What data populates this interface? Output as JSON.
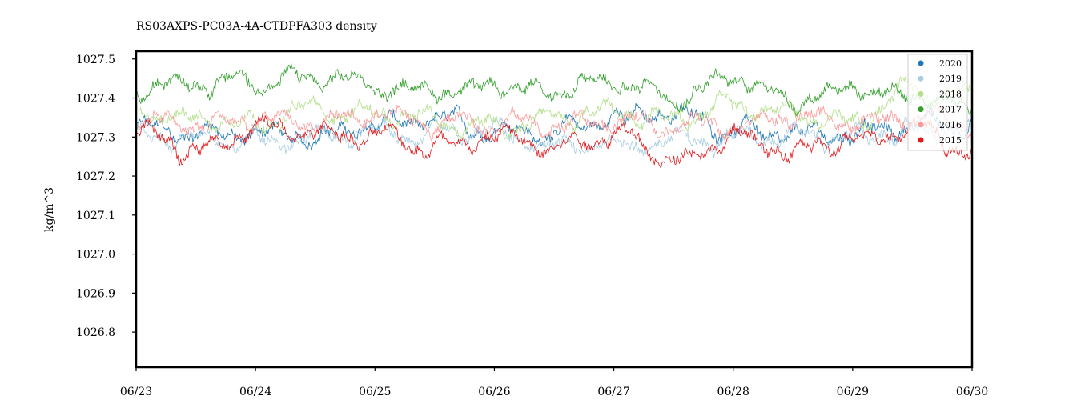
{
  "chart_data": {
    "type": "line",
    "title": "RS03AXPS-PC03A-4A-CTDPFA303 density",
    "xlabel": "",
    "ylabel": "kg/m^3",
    "x_ticks": [
      "06/23",
      "06/24",
      "06/25",
      "06/26",
      "06/27",
      "06/28",
      "06/29",
      "06/30"
    ],
    "y_ticks": [
      1026.8,
      1026.9,
      1027.0,
      1027.1,
      1027.2,
      1027.3,
      1027.4,
      1027.5
    ],
    "xlim": [
      "06/23",
      "06/30"
    ],
    "ylim": [
      1026.71,
      1027.52
    ],
    "grid": false,
    "legend_position": "top-right",
    "series": [
      {
        "name": "2020",
        "color": "#1f78b4",
        "x": [
          "06/23",
          "06/23 12:00",
          "06/24",
          "06/24 12:00",
          "06/25",
          "06/25 12:00",
          "06/26",
          "06/26 12:00",
          "06/27",
          "06/27 12:00",
          "06/28",
          "06/28 12:00",
          "06/29",
          "06/29 12:00",
          "06/30"
        ],
        "values": [
          1027.32,
          1027.31,
          1027.31,
          1027.3,
          1027.33,
          1027.34,
          1027.32,
          1027.31,
          1027.35,
          1027.36,
          1027.32,
          1027.3,
          1027.31,
          1027.33,
          1027.34
        ]
      },
      {
        "name": "2019",
        "color": "#a6cee3",
        "x": [
          "06/23",
          "06/23 12:00",
          "06/24",
          "06/24 12:00",
          "06/25",
          "06/25 12:00",
          "06/26",
          "06/26 12:00",
          "06/27",
          "06/27 12:00",
          "06/28",
          "06/28 12:00",
          "06/29",
          "06/29 12:00",
          "06/30"
        ],
        "values": [
          1027.3,
          1027.3,
          1027.29,
          1027.3,
          1027.31,
          1027.3,
          1027.31,
          1027.27,
          1027.28,
          1027.29,
          1027.3,
          1027.31,
          1027.3,
          1027.31,
          1027.32
        ]
      },
      {
        "name": "2018",
        "color": "#b2df8a",
        "x": [
          "06/23",
          "06/23 12:00",
          "06/24",
          "06/24 12:00",
          "06/25",
          "06/25 12:00",
          "06/26",
          "06/26 12:00",
          "06/27",
          "06/27 12:00",
          "06/28",
          "06/28 12:00",
          "06/29",
          "06/29 12:00",
          "06/30"
        ],
        "values": [
          1027.36,
          1027.35,
          1027.34,
          1027.37,
          1027.36,
          1027.34,
          1027.33,
          1027.35,
          1027.36,
          1027.35,
          1027.38,
          1027.36,
          1027.34,
          1027.42,
          1027.4
        ]
      },
      {
        "name": "2017",
        "color": "#33a02c",
        "x": [
          "06/23",
          "06/23 12:00",
          "06/24",
          "06/24 12:00",
          "06/25",
          "06/25 12:00",
          "06/26",
          "06/26 12:00",
          "06/27",
          "06/27 12:00",
          "06/28",
          "06/28 12:00",
          "06/29",
          "06/29 12:00",
          "06/30"
        ],
        "values": [
          1027.42,
          1027.45,
          1027.44,
          1027.45,
          1027.43,
          1027.42,
          1027.43,
          1027.42,
          1027.44,
          1027.41,
          1027.45,
          1027.4,
          1027.42,
          1027.4,
          1027.38
        ]
      },
      {
        "name": "2016",
        "color": "#fb9a99",
        "x": [
          "06/23",
          "06/23 12:00",
          "06/24",
          "06/24 12:00",
          "06/25",
          "06/25 12:00",
          "06/26",
          "06/26 12:00",
          "06/27",
          "06/27 12:00",
          "06/28",
          "06/28 12:00",
          "06/29",
          "06/29 12:00",
          "06/30"
        ],
        "values": [
          1027.34,
          1027.33,
          1027.34,
          1027.34,
          1027.35,
          1027.34,
          1027.34,
          1027.33,
          1027.34,
          1027.33,
          1027.34,
          1027.35,
          1027.34,
          1027.35,
          1027.33
        ]
      },
      {
        "name": "2015",
        "color": "#e31a1c",
        "x": [
          "06/23",
          "06/23 12:00",
          "06/24",
          "06/24 12:00",
          "06/25",
          "06/25 12:00",
          "06/26",
          "06/26 12:00",
          "06/27",
          "06/27 12:00",
          "06/28",
          "06/28 12:00",
          "06/29",
          "06/29 12:00",
          "06/30"
        ],
        "values": [
          1027.31,
          1027.27,
          1027.32,
          1027.31,
          1027.3,
          1027.28,
          1027.3,
          1027.28,
          1027.31,
          1027.24,
          1027.3,
          1027.26,
          1027.29,
          1027.33,
          1027.26
        ]
      }
    ]
  }
}
